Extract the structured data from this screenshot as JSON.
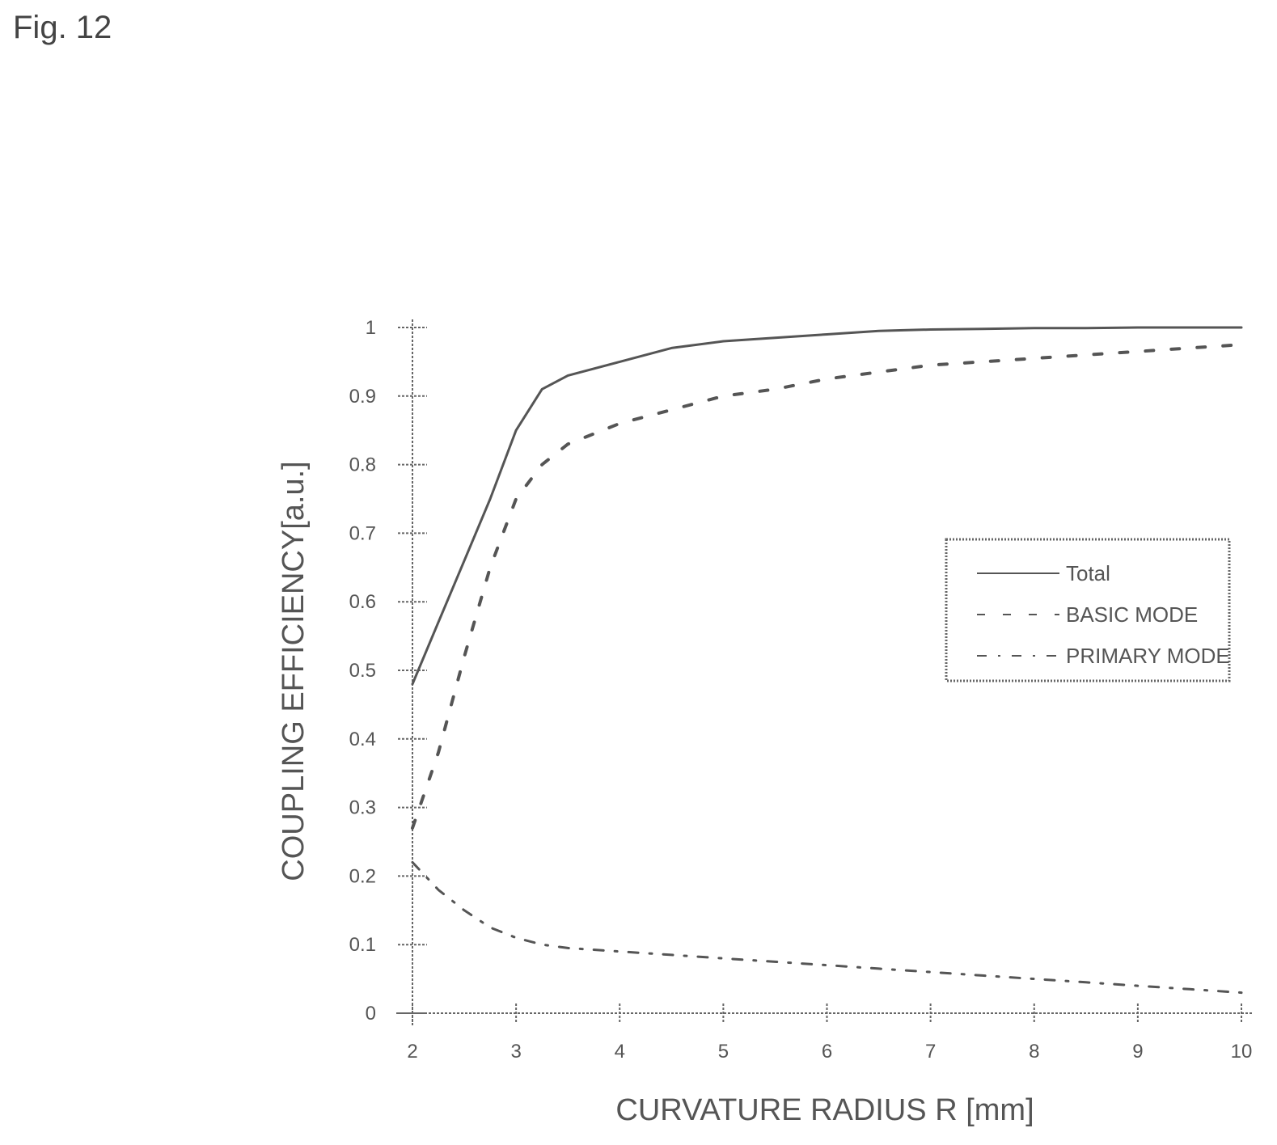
{
  "figure_label": "Fig. 12",
  "chart_data": {
    "type": "line",
    "xlabel": "CURVATURE RADIUS R [mm]",
    "ylabel": "COUPLING EFFICIENCY[a.u.]",
    "xlim": [
      2,
      10
    ],
    "ylim": [
      0,
      1
    ],
    "xticks": [
      "2",
      "3",
      "4",
      "5",
      "6",
      "7",
      "8",
      "9",
      "10"
    ],
    "yticks": [
      "0",
      "0.1",
      "0.2",
      "0.3",
      "0.4",
      "0.5",
      "0.6",
      "0.7",
      "0.8",
      "0.9",
      "1"
    ],
    "grid": false,
    "legend_position": "right",
    "x": [
      2,
      2.25,
      2.5,
      2.75,
      3,
      3.25,
      3.5,
      4,
      4.5,
      5,
      5.5,
      6,
      6.5,
      7,
      7.5,
      8,
      8.5,
      9,
      9.5,
      10
    ],
    "series": [
      {
        "name": "Total",
        "style": "solid",
        "values": [
          0.48,
          0.57,
          0.66,
          0.75,
          0.85,
          0.91,
          0.93,
          0.95,
          0.97,
          0.98,
          0.985,
          0.99,
          0.995,
          0.997,
          0.998,
          0.999,
          0.999,
          1.0,
          1.0,
          1.0
        ]
      },
      {
        "name": "BASIC MODE",
        "style": "dashed",
        "values": [
          0.27,
          0.38,
          0.52,
          0.65,
          0.75,
          0.8,
          0.83,
          0.86,
          0.88,
          0.9,
          0.91,
          0.925,
          0.935,
          0.945,
          0.95,
          0.955,
          0.96,
          0.965,
          0.97,
          0.975
        ]
      },
      {
        "name": "PRIMARY MODE",
        "style": "dash-dot",
        "values": [
          0.22,
          0.18,
          0.15,
          0.125,
          0.11,
          0.1,
          0.095,
          0.09,
          0.085,
          0.08,
          0.075,
          0.07,
          0.065,
          0.06,
          0.055,
          0.05,
          0.045,
          0.04,
          0.035,
          0.03
        ]
      }
    ]
  }
}
